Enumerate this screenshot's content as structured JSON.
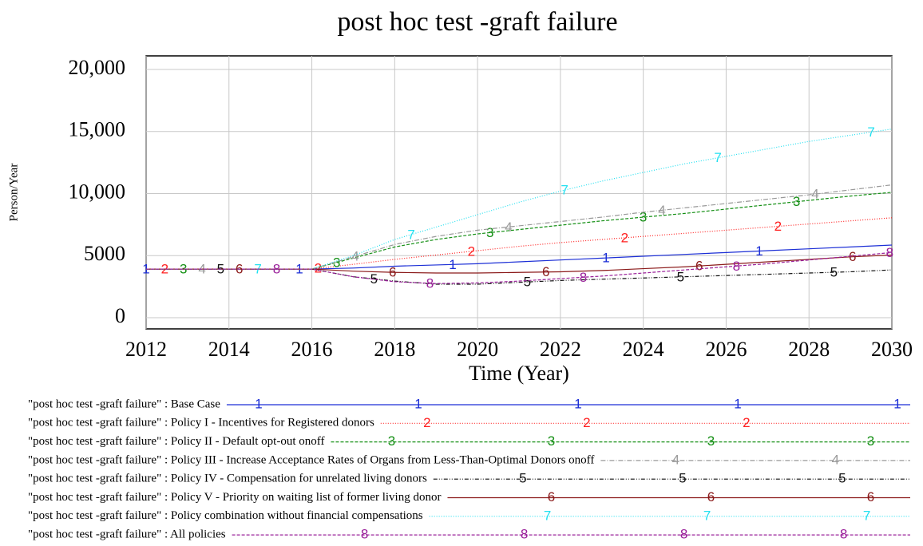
{
  "chart_data": {
    "type": "line",
    "title": "post hoc test -graft failure",
    "x_label": "Time (Year)",
    "y_label": "Person/Year",
    "x": [
      2012,
      2013,
      2014,
      2015,
      2016,
      2017,
      2018,
      2019,
      2020,
      2021,
      2022,
      2023,
      2024,
      2025,
      2026,
      2027,
      2028,
      2029,
      2030
    ],
    "xlim": [
      2012,
      2030
    ],
    "xticks": [
      2012,
      2014,
      2016,
      2018,
      2020,
      2022,
      2024,
      2026,
      2028,
      2030
    ],
    "ylim": [
      0,
      20000
    ],
    "yticks": [
      0,
      5000,
      {
        "value": 10000,
        "label": "10,000"
      },
      {
        "value": 15000,
        "label": "15,000"
      },
      {
        "value": 20000,
        "label": "20,000"
      }
    ],
    "grid": true,
    "series": [
      {
        "name": "\"post hoc test -graft failure\" : Base Case",
        "marker": "1",
        "color": "#1c2fd6",
        "dash": "none",
        "values": [
          3920,
          3920,
          3920,
          3920,
          3920,
          4000,
          4150,
          4250,
          4350,
          4500,
          4650,
          4800,
          4950,
          5100,
          5250,
          5400,
          5550,
          5700,
          5850
        ]
      },
      {
        "name": "\"post hoc test -graft failure\" : Policy I - Incentives for Registered donors",
        "marker": "2",
        "color": "#ff2020",
        "dash": "1 2",
        "values": [
          3920,
          3920,
          3920,
          3920,
          3920,
          4300,
          4700,
          5050,
          5400,
          5750,
          6050,
          6300,
          6550,
          6800,
          7050,
          7300,
          7550,
          7800,
          8050
        ]
      },
      {
        "name": "\"post hoc test -graft failure\" : Policy II - Default opt-out onoff",
        "marker": "3",
        "color": "#169016",
        "dash": "4 2",
        "values": [
          3920,
          3920,
          3920,
          3920,
          3920,
          4800,
          5700,
          6300,
          6750,
          7100,
          7450,
          7800,
          8100,
          8400,
          8750,
          9100,
          9450,
          9800,
          10100
        ]
      },
      {
        "name": "\"post hoc test -graft failure\" : Policy III - Increase Acceptance Rates of Organs from Less-Than-Optimal Donors onoff",
        "marker": "4",
        "color": "#999999",
        "dash": "6 2 1 2",
        "values": [
          3920,
          3920,
          3920,
          3920,
          3920,
          4900,
          5900,
          6550,
          7050,
          7400,
          7750,
          8100,
          8500,
          8850,
          9200,
          9550,
          9900,
          10300,
          10700
        ]
      },
      {
        "name": "\"post hoc test -graft failure\" : Policy IV - Compensation for unrelated living donors",
        "marker": "5",
        "color": "#111111",
        "dash": "5 2 1 2 1 2",
        "values": [
          3920,
          3920,
          3920,
          3920,
          3920,
          3300,
          2950,
          2700,
          2700,
          2850,
          3000,
          3100,
          3200,
          3300,
          3400,
          3500,
          3600,
          3700,
          3850
        ]
      },
      {
        "name": "\"post hoc test -graft failure\" : Policy V - Priority on waiting list of former living donor",
        "marker": "6",
        "color": "#8b1a1a",
        "dash": "none",
        "values": [
          3920,
          3920,
          3920,
          3920,
          3920,
          3750,
          3650,
          3600,
          3600,
          3650,
          3700,
          3800,
          3950,
          4100,
          4300,
          4500,
          4700,
          4900,
          5050
        ]
      },
      {
        "name": "\"post hoc test -graft failure\" : Policy combination without financial compensations",
        "marker": "7",
        "color": "#22e0f0",
        "dash": "1 2",
        "values": [
          3920,
          3920,
          3920,
          3920,
          3920,
          5000,
          6300,
          7300,
          8300,
          9300,
          10200,
          11000,
          11700,
          12400,
          13000,
          13600,
          14200,
          14700,
          15200
        ]
      },
      {
        "name": "\"post hoc test -graft failure\" : All policies",
        "marker": "8",
        "color": "#9a209a",
        "dash": "4 2",
        "values": [
          3920,
          3920,
          3920,
          3920,
          3920,
          3300,
          2900,
          2750,
          2800,
          2950,
          3150,
          3350,
          3600,
          3850,
          4100,
          4350,
          4650,
          4950,
          5250
        ]
      }
    ]
  }
}
